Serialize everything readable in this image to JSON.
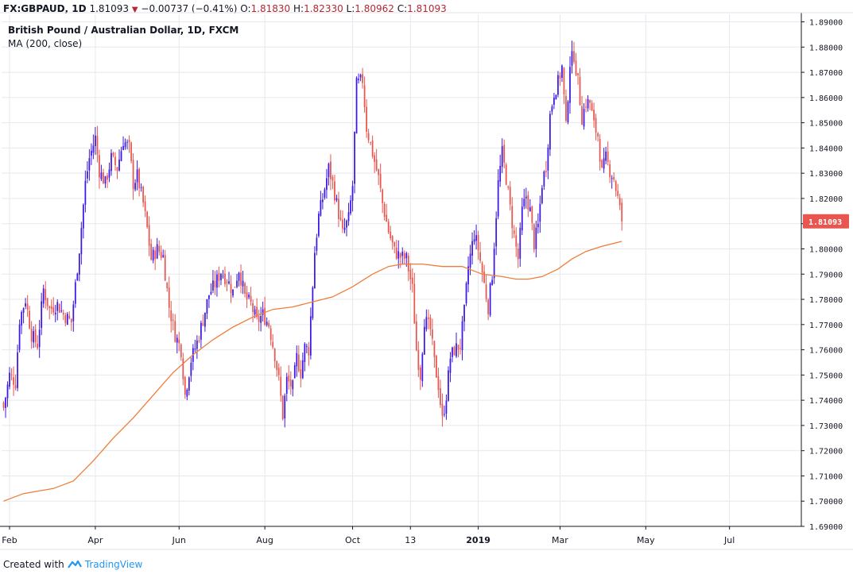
{
  "header": {
    "symbol": "FX:GBPAUD, 1D",
    "last": "1.81093",
    "change": "−0.00737 (−0.41%)",
    "open_label": "O:",
    "open": "1.81830",
    "high_label": "H:",
    "high": "1.82330",
    "low_label": "L:",
    "low": "1.80962",
    "close_label": "C:",
    "close": "1.81093"
  },
  "legend": {
    "title": "British Pound / Australian Dollar, 1D, FXCM",
    "indicator": "MA (200, close)"
  },
  "footer": {
    "created_with": "Created with",
    "brand": "TradingView"
  },
  "colors": {
    "up": "#3d17e6",
    "down": "#e8564f",
    "ma": "#ef7d3a",
    "grid": "#e6e8ee",
    "price_tag": "#e8564f"
  },
  "chart_data": {
    "type": "candlestick",
    "y_ticks": [
      "1.69000",
      "1.70000",
      "1.71000",
      "1.72000",
      "1.73000",
      "1.74000",
      "1.75000",
      "1.76000",
      "1.77000",
      "1.78000",
      "1.79000",
      "1.80000",
      "1.81000",
      "1.82000",
      "1.83000",
      "1.84000",
      "1.85000",
      "1.86000",
      "1.87000",
      "1.88000",
      "1.89000"
    ],
    "ylim": [
      1.69,
      1.893
    ],
    "x_ticks": [
      {
        "label": "Feb",
        "i": 3
      },
      {
        "label": "Apr",
        "i": 46
      },
      {
        "label": "Jun",
        "i": 88
      },
      {
        "label": "Aug",
        "i": 131
      },
      {
        "label": "Oct",
        "i": 175
      },
      {
        "label": "13",
        "i": 204
      },
      {
        "label": "2019",
        "i": 238,
        "bold": true
      },
      {
        "label": "Mar",
        "i": 279
      },
      {
        "label": "May",
        "i": 322
      },
      {
        "label": "Jul",
        "i": 364
      }
    ],
    "xlim": [
      -1,
      400
    ],
    "last_price": "1.81093",
    "series": [
      {
        "name": "GBPAUD",
        "kind": "ohlc",
        "close_points": [
          [
            0,
            1.737
          ],
          [
            3,
            1.75
          ],
          [
            6,
            1.747
          ],
          [
            8,
            1.772
          ],
          [
            11,
            1.78
          ],
          [
            14,
            1.766
          ],
          [
            17,
            1.762
          ],
          [
            20,
            1.784
          ],
          [
            23,
            1.776
          ],
          [
            27,
            1.778
          ],
          [
            30,
            1.774
          ],
          [
            34,
            1.771
          ],
          [
            38,
            1.8
          ],
          [
            41,
            1.826
          ],
          [
            43,
            1.836
          ],
          [
            46,
            1.844
          ],
          [
            48,
            1.831
          ],
          [
            51,
            1.826
          ],
          [
            54,
            1.836
          ],
          [
            57,
            1.832
          ],
          [
            60,
            1.843
          ],
          [
            63,
            1.84
          ],
          [
            65,
            1.826
          ],
          [
            67,
            1.829
          ],
          [
            70,
            1.818
          ],
          [
            72,
            1.808
          ],
          [
            74,
            1.796
          ],
          [
            77,
            1.8
          ],
          [
            80,
            1.797
          ],
          [
            83,
            1.777
          ],
          [
            86,
            1.766
          ],
          [
            89,
            1.76
          ],
          [
            91,
            1.742
          ],
          [
            94,
            1.756
          ],
          [
            97,
            1.763
          ],
          [
            100,
            1.772
          ],
          [
            103,
            1.782
          ],
          [
            106,
            1.786
          ],
          [
            109,
            1.791
          ],
          [
            112,
            1.788
          ],
          [
            115,
            1.783
          ],
          [
            118,
            1.792
          ],
          [
            121,
            1.781
          ],
          [
            124,
            1.778
          ],
          [
            127,
            1.771
          ],
          [
            130,
            1.774
          ],
          [
            133,
            1.77
          ],
          [
            136,
            1.758
          ],
          [
            138,
            1.748
          ],
          [
            140,
            1.734
          ],
          [
            142,
            1.748
          ],
          [
            145,
            1.745
          ],
          [
            147,
            1.757
          ],
          [
            149,
            1.751
          ],
          [
            151,
            1.761
          ],
          [
            153,
            1.76
          ],
          [
            156,
            1.799
          ],
          [
            158,
            1.813
          ],
          [
            160,
            1.82
          ],
          [
            163,
            1.832
          ],
          [
            165,
            1.826
          ],
          [
            168,
            1.814
          ],
          [
            170,
            1.806
          ],
          [
            173,
            1.812
          ],
          [
            175,
            1.825
          ],
          [
            177,
            1.865
          ],
          [
            180,
            1.867
          ],
          [
            182,
            1.848
          ],
          [
            185,
            1.838
          ],
          [
            188,
            1.828
          ],
          [
            190,
            1.818
          ],
          [
            193,
            1.807
          ],
          [
            196,
            1.799
          ],
          [
            199,
            1.797
          ],
          [
            202,
            1.796
          ],
          [
            205,
            1.784
          ],
          [
            207,
            1.76
          ],
          [
            209,
            1.75
          ],
          [
            211,
            1.772
          ],
          [
            214,
            1.768
          ],
          [
            216,
            1.755
          ],
          [
            218,
            1.746
          ],
          [
            220,
            1.732
          ],
          [
            222,
            1.742
          ],
          [
            224,
            1.757
          ],
          [
            226,
            1.76
          ],
          [
            229,
            1.762
          ],
          [
            231,
            1.775
          ],
          [
            233,
            1.793
          ],
          [
            236,
            1.806
          ],
          [
            238,
            1.8
          ],
          [
            241,
            1.786
          ],
          [
            243,
            1.777
          ],
          [
            245,
            1.79
          ],
          [
            248,
            1.826
          ],
          [
            250,
            1.838
          ],
          [
            252,
            1.828
          ],
          [
            254,
            1.816
          ],
          [
            256,
            1.805
          ],
          [
            258,
            1.796
          ],
          [
            260,
            1.815
          ],
          [
            262,
            1.821
          ],
          [
            264,
            1.815
          ],
          [
            266,
            1.802
          ],
          [
            268,
            1.809
          ],
          [
            270,
            1.826
          ],
          [
            272,
            1.833
          ],
          [
            274,
            1.853
          ],
          [
            276,
            1.862
          ],
          [
            278,
            1.866
          ],
          [
            280,
            1.872
          ],
          [
            282,
            1.848
          ],
          [
            284,
            1.874
          ],
          [
            286,
            1.877
          ],
          [
            288,
            1.866
          ],
          [
            290,
            1.852
          ],
          [
            292,
            1.858
          ],
          [
            294,
            1.858
          ],
          [
            296,
            1.849
          ],
          [
            298,
            1.845
          ],
          [
            300,
            1.83
          ],
          [
            302,
            1.836
          ],
          [
            304,
            1.831
          ],
          [
            306,
            1.828
          ],
          [
            308,
            1.82
          ],
          [
            310,
            1.811
          ]
        ]
      },
      {
        "name": "MA (200, close)",
        "kind": "line",
        "points": [
          [
            0,
            1.7
          ],
          [
            10,
            1.703
          ],
          [
            25,
            1.705
          ],
          [
            35,
            1.708
          ],
          [
            45,
            1.716
          ],
          [
            55,
            1.725
          ],
          [
            65,
            1.733
          ],
          [
            75,
            1.742
          ],
          [
            85,
            1.751
          ],
          [
            95,
            1.758
          ],
          [
            105,
            1.764
          ],
          [
            115,
            1.769
          ],
          [
            125,
            1.773
          ],
          [
            135,
            1.776
          ],
          [
            145,
            1.777
          ],
          [
            155,
            1.779
          ],
          [
            165,
            1.781
          ],
          [
            175,
            1.785
          ],
          [
            185,
            1.79
          ],
          [
            193,
            1.793
          ],
          [
            200,
            1.794
          ],
          [
            210,
            1.794
          ],
          [
            220,
            1.793
          ],
          [
            230,
            1.793
          ],
          [
            240,
            1.79
          ],
          [
            250,
            1.789
          ],
          [
            257,
            1.788
          ],
          [
            263,
            1.788
          ],
          [
            270,
            1.789
          ],
          [
            278,
            1.792
          ],
          [
            285,
            1.796
          ],
          [
            292,
            1.799
          ],
          [
            300,
            1.801
          ],
          [
            310,
            1.803
          ]
        ]
      }
    ]
  }
}
